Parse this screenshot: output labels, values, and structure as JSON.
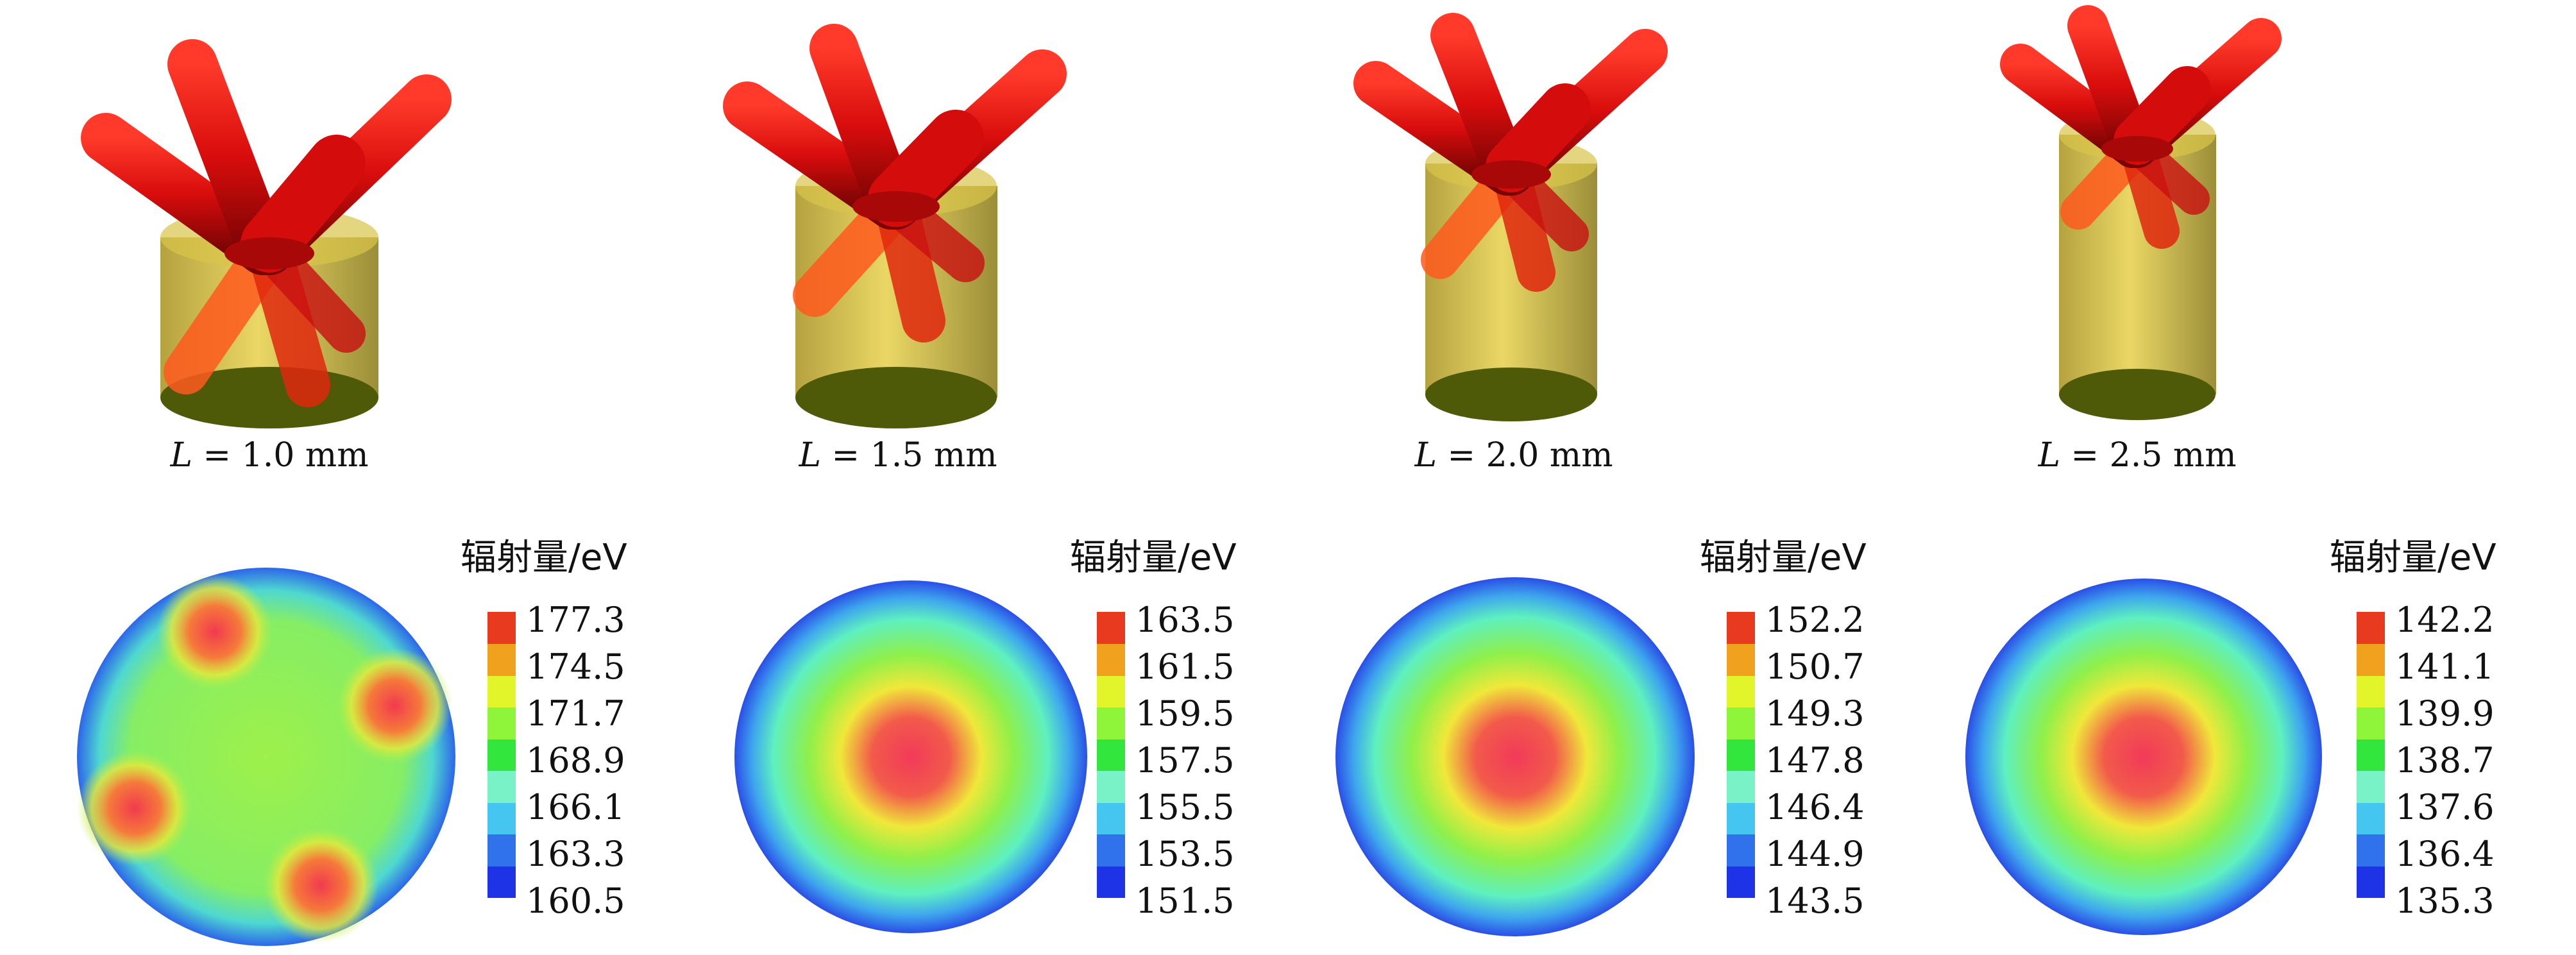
{
  "panels": [
    {
      "caption": {
        "var": "L",
        "eq": " = ",
        "value": "1.0",
        "unit": " mm"
      },
      "legend": {
        "title": "辐射量/eV",
        "ticks": [
          "177.3",
          "174.5",
          "171.7",
          "168.9",
          "166.1",
          "163.3",
          "160.5"
        ]
      },
      "map_pattern": "four-hotspots",
      "model": {
        "cylinder_height": 0.42
      }
    },
    {
      "caption": {
        "var": "L",
        "eq": " = ",
        "value": "1.5",
        "unit": " mm"
      },
      "legend": {
        "title": "辐射量/eV",
        "ticks": [
          "163.5",
          "161.5",
          "159.5",
          "157.5",
          "155.5",
          "153.5",
          "151.5"
        ]
      },
      "map_pattern": "radial",
      "model": {
        "cylinder_height": 0.55
      }
    },
    {
      "caption": {
        "var": "L",
        "eq": " = ",
        "value": "2.0",
        "unit": " mm"
      },
      "legend": {
        "title": "辐射量/eV",
        "ticks": [
          "152.2",
          "150.7",
          "149.3",
          "147.8",
          "146.4",
          "144.9",
          "143.5"
        ]
      },
      "map_pattern": "radial",
      "model": {
        "cylinder_height": 0.7
      }
    },
    {
      "caption": {
        "var": "L",
        "eq": " = ",
        "value": "2.5",
        "unit": " mm"
      },
      "legend": {
        "title": "辐射量/eV",
        "ticks": [
          "142.2",
          "141.1",
          "139.9",
          "138.7",
          "137.6",
          "136.4",
          "135.3"
        ]
      },
      "map_pattern": "radial",
      "model": {
        "cylinder_height": 0.85
      }
    }
  ],
  "colorbar": [
    "#e83a1e",
    "#f0a21e",
    "#e2f52a",
    "#8ef53a",
    "#33e63e",
    "#7af2c8",
    "#44c6f0",
    "#2f72ec",
    "#1e32e6"
  ],
  "colors": {
    "tube": "#e01212",
    "tube_dark": "#7a0606",
    "cylinder": "#c9b12f",
    "cylinder_dark": "#4f5a08",
    "map_edge": "#2c5be8",
    "map_hot": "#f23a5a"
  }
}
